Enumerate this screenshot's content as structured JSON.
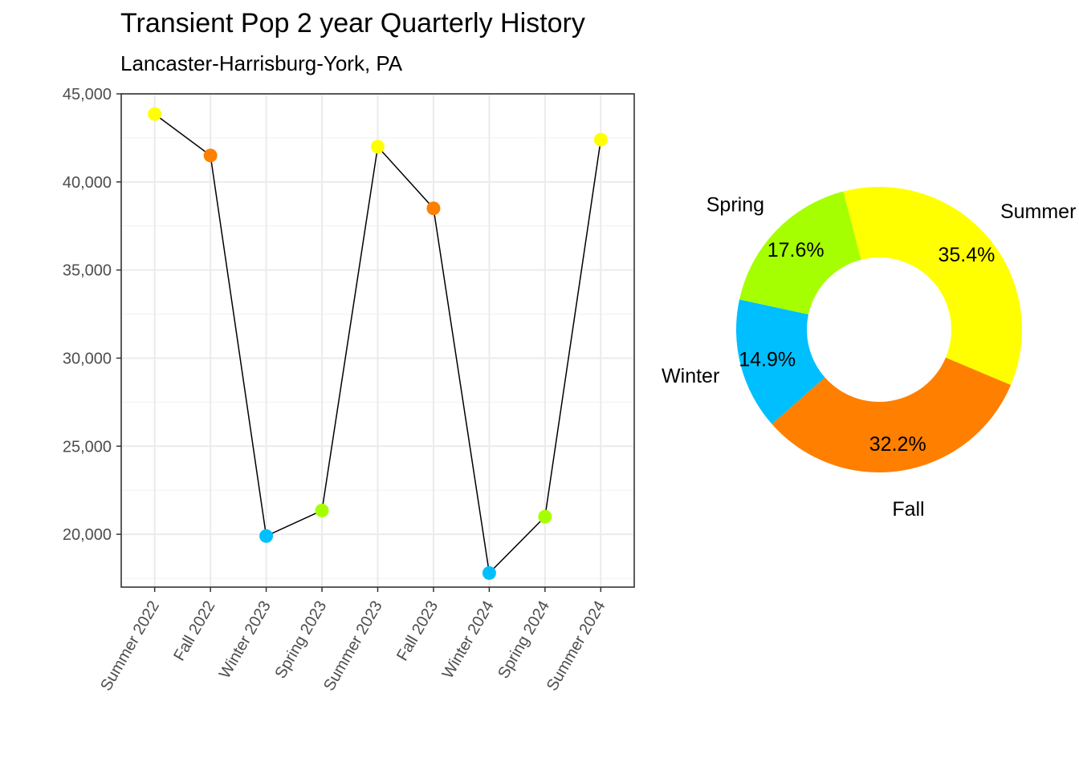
{
  "title": "Transient Pop 2 year Quarterly History",
  "subtitle": "Lancaster-Harrisburg-York, PA",
  "colors": {
    "Summer": "#ffff00",
    "Fall": "#ff7f00",
    "Winter": "#00bfff",
    "Spring": "#a6ff00"
  },
  "chart_data": [
    {
      "type": "line",
      "title": "Transient Pop 2 year Quarterly History",
      "subtitle": "Lancaster-Harrisburg-York, PA",
      "xlabel": "",
      "ylabel": "",
      "categories": [
        "Summer 2022",
        "Fall 2022",
        "Winter 2023",
        "Spring 2023",
        "Summer 2023",
        "Fall 2023",
        "Winter 2024",
        "Spring 2024",
        "Summer 2024"
      ],
      "seasons": [
        "Summer",
        "Fall",
        "Winter",
        "Spring",
        "Summer",
        "Fall",
        "Winter",
        "Spring",
        "Summer"
      ],
      "values": [
        43850,
        41500,
        19900,
        21350,
        42000,
        38500,
        17800,
        21000,
        42400
      ],
      "ylim": [
        17000,
        45000
      ],
      "yticks": [
        20000,
        25000,
        30000,
        35000,
        40000,
        45000
      ],
      "ytick_labels": [
        "20,000",
        "25,000",
        "30,000",
        "35,000",
        "40,000",
        "45,000"
      ],
      "grid": true
    },
    {
      "type": "pie",
      "donut": true,
      "slices": [
        {
          "label": "Summer",
          "value": 35.4,
          "pct_label": "35.4%"
        },
        {
          "label": "Fall",
          "value": 32.2,
          "pct_label": "32.2%"
        },
        {
          "label": "Winter",
          "value": 14.9,
          "pct_label": "14.9%"
        },
        {
          "label": "Spring",
          "value": 17.6,
          "pct_label": "17.6%"
        }
      ]
    }
  ]
}
